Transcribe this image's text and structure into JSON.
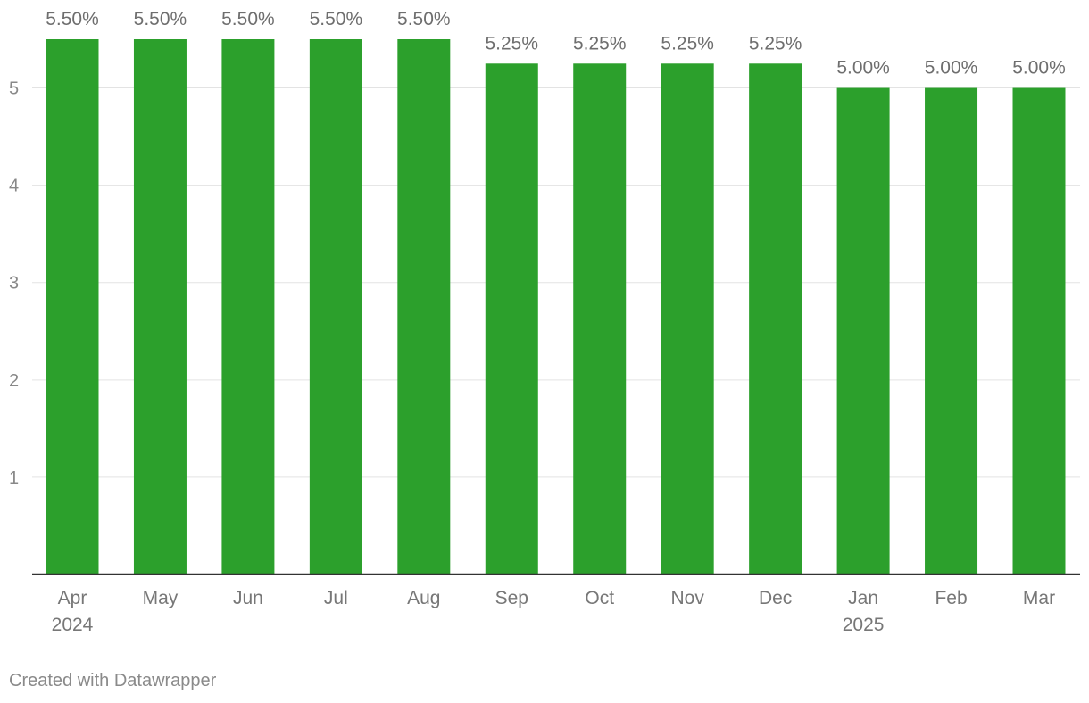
{
  "chart_data": {
    "type": "bar",
    "categories": [
      "Apr",
      "May",
      "Jun",
      "Jul",
      "Aug",
      "Sep",
      "Oct",
      "Nov",
      "Dec",
      "Jan",
      "Feb",
      "Mar"
    ],
    "year_labels": [
      "2024",
      "",
      "",
      "",
      "",
      "",
      "",
      "",
      "",
      "2025",
      "",
      ""
    ],
    "values": [
      5.5,
      5.5,
      5.5,
      5.5,
      5.5,
      5.25,
      5.25,
      5.25,
      5.25,
      5.0,
      5.0,
      5.0
    ],
    "data_labels": [
      "5.50%",
      "5.50%",
      "5.50%",
      "5.50%",
      "5.50%",
      "5.25%",
      "5.25%",
      "5.25%",
      "5.25%",
      "5.00%",
      "5.00%",
      "5.00%"
    ],
    "yticks": [
      1,
      2,
      3,
      4,
      5
    ],
    "ylim": [
      0,
      5.5
    ],
    "grid": true,
    "bar_color": "#2ca02c",
    "title": "",
    "xlabel": "",
    "ylabel": ""
  },
  "footer": {
    "credit": "Created with Datawrapper"
  }
}
